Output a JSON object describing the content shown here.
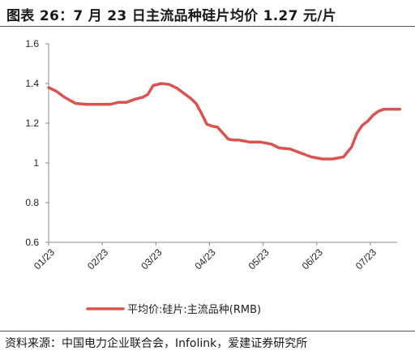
{
  "figure": {
    "title": "图表 26：7 月 23 日主流品种硅片均价 1.27 元/片",
    "source": "资料来源：中国电力企业联合会，Infolink，爱建证券研究所"
  },
  "chart_data": {
    "type": "line",
    "title": "",
    "xlabel": "",
    "ylabel": "",
    "ylim": [
      0.6,
      1.6
    ],
    "yticks": [
      0.6,
      0.8,
      1,
      1.2,
      1.4,
      1.6
    ],
    "ytick_labels": [
      "0.6",
      "0.8",
      "1",
      "1.2",
      "1.4",
      "1.6"
    ],
    "x_tick_labels": [
      "01/23",
      "02/23",
      "03/23",
      "04/23",
      "05/23",
      "06/23",
      "07/23"
    ],
    "grid": false,
    "legend_position": "bottom",
    "color": "#d9534f",
    "series": [
      {
        "name": "平均价:硅片:主流品种(RMB)",
        "x": [
          0,
          0.15,
          0.3,
          0.5,
          0.7,
          0.9,
          1.0,
          1.15,
          1.3,
          1.45,
          1.6,
          1.75,
          1.85,
          1.95,
          2.1,
          2.25,
          2.4,
          2.55,
          2.65,
          2.75,
          2.85,
          2.95,
          3.05,
          3.15,
          3.25,
          3.35,
          3.45,
          3.55,
          3.65,
          3.75,
          3.85,
          3.95,
          4.05,
          4.15,
          4.3,
          4.5,
          4.7,
          4.9,
          5.1,
          5.3,
          5.5,
          5.65,
          5.75,
          5.85,
          5.95,
          6.05,
          6.15,
          6.25,
          6.35,
          6.45,
          6.55
        ],
        "values": [
          1.38,
          1.36,
          1.33,
          1.3,
          1.295,
          1.295,
          1.295,
          1.295,
          1.305,
          1.305,
          1.32,
          1.33,
          1.345,
          1.39,
          1.4,
          1.395,
          1.375,
          1.345,
          1.325,
          1.3,
          1.25,
          1.195,
          1.185,
          1.18,
          1.15,
          1.12,
          1.115,
          1.115,
          1.11,
          1.105,
          1.105,
          1.105,
          1.1,
          1.095,
          1.075,
          1.07,
          1.05,
          1.03,
          1.02,
          1.02,
          1.03,
          1.08,
          1.15,
          1.19,
          1.21,
          1.24,
          1.26,
          1.27,
          1.27,
          1.27,
          1.27
        ]
      }
    ]
  }
}
